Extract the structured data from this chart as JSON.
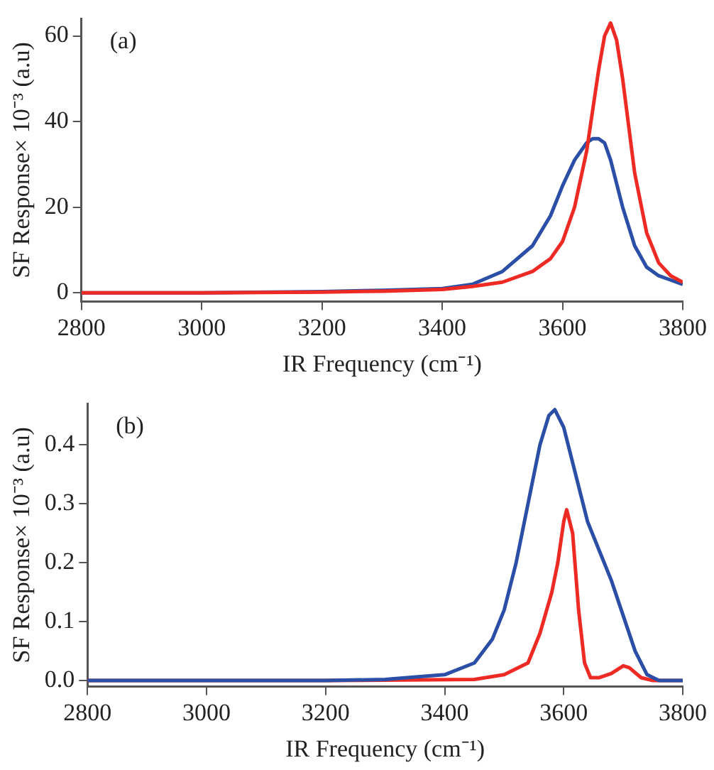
{
  "chart_data": [
    {
      "type": "line",
      "xlabel": "IR Frequency (cm⁻¹)",
      "ylabel": "SF Response× 10⁻³ (a.u)",
      "annotations": [
        "(a)"
      ],
      "xlim": [
        2800,
        3800
      ],
      "xticks": [
        2800,
        3000,
        3200,
        3400,
        3600,
        3800
      ],
      "ylim": [
        -2,
        64
      ],
      "yticks": [
        0,
        20,
        40,
        60
      ],
      "grid": false,
      "legend": false,
      "marker": "none",
      "line_style": "solid",
      "series": [
        {
          "color": "#ee2a24",
          "x": [
            2800,
            3000,
            3200,
            3300,
            3400,
            3450,
            3500,
            3550,
            3580,
            3600,
            3620,
            3640,
            3660,
            3670,
            3680,
            3690,
            3700,
            3720,
            3740,
            3760,
            3780,
            3800
          ],
          "values": [
            0,
            0,
            0.2,
            0.4,
            0.8,
            1.5,
            2.5,
            5,
            8,
            12,
            20,
            33,
            52,
            60,
            63,
            59,
            50,
            28,
            14,
            7,
            4,
            2.5
          ]
        },
        {
          "color": "#2b4fa6",
          "x": [
            2800,
            3000,
            3200,
            3300,
            3400,
            3450,
            3500,
            3550,
            3580,
            3600,
            3620,
            3640,
            3650,
            3660,
            3670,
            3680,
            3700,
            3720,
            3740,
            3760,
            3780,
            3800
          ],
          "values": [
            0,
            0,
            0.3,
            0.6,
            1,
            2,
            5,
            11,
            18,
            25,
            31,
            35,
            36,
            36,
            35,
            31,
            20,
            11,
            6,
            4,
            3,
            2
          ]
        }
      ]
    },
    {
      "type": "line",
      "xlabel": "IR Frequency (cm⁻¹)",
      "ylabel": "SF Response× 10⁻³ (a.u)",
      "annotations": [
        "(b)"
      ],
      "xlim": [
        2800,
        3800
      ],
      "xticks": [
        2800,
        3000,
        3200,
        3400,
        3600,
        3800
      ],
      "ylim": [
        -0.01,
        0.47
      ],
      "yticks": [
        {
          "value": 0,
          "label": "0.0"
        },
        0.1,
        0.2,
        0.3,
        0.4
      ],
      "grid": false,
      "legend": false,
      "marker": "none",
      "line_style": "solid",
      "series": [
        {
          "color": "#2b4fa6",
          "x": [
            2800,
            3000,
            3200,
            3300,
            3400,
            3450,
            3480,
            3500,
            3520,
            3540,
            3560,
            3575,
            3585,
            3600,
            3620,
            3640,
            3660,
            3680,
            3700,
            3720,
            3740,
            3760,
            3800
          ],
          "values": [
            0,
            0,
            0,
            0.002,
            0.01,
            0.03,
            0.07,
            0.12,
            0.2,
            0.3,
            0.4,
            0.45,
            0.46,
            0.43,
            0.35,
            0.27,
            0.22,
            0.17,
            0.11,
            0.05,
            0.01,
            0,
            0
          ]
        },
        {
          "color": "#ee2a24",
          "x": [
            2800,
            3200,
            3450,
            3500,
            3540,
            3560,
            3580,
            3590,
            3600,
            3605,
            3615,
            3625,
            3635,
            3645,
            3660,
            3680,
            3700,
            3710,
            3730,
            3750,
            3800
          ],
          "values": [
            0,
            0,
            0.002,
            0.01,
            0.03,
            0.08,
            0.15,
            0.2,
            0.27,
            0.29,
            0.25,
            0.12,
            0.03,
            0.005,
            0.005,
            0.012,
            0.025,
            0.022,
            0.005,
            0,
            0
          ]
        }
      ]
    }
  ]
}
